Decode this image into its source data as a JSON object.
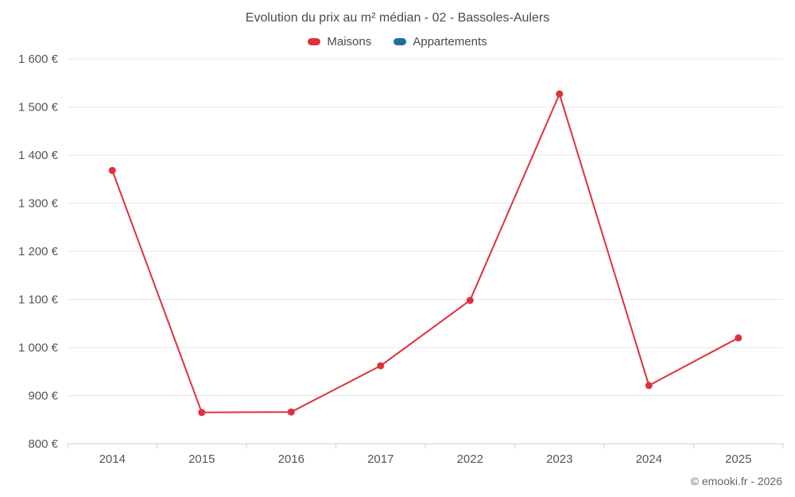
{
  "chart_data": {
    "type": "line",
    "title": "Evolution du prix au m² médian - 02 - Bassoles-Aulers",
    "categories": [
      "2014",
      "2015",
      "2016",
      "2017",
      "2022",
      "2023",
      "2024",
      "2025"
    ],
    "series": [
      {
        "name": "Maisons",
        "color": "#e0313a",
        "values": [
          1368,
          865,
          866,
          962,
          1098,
          1527,
          921,
          1020
        ]
      },
      {
        "name": "Appartements",
        "color": "#1971a2",
        "values": []
      }
    ],
    "xlabel": "",
    "ylabel": "",
    "ylim": [
      800,
      1600
    ],
    "ytick_step": 100,
    "yticks": [
      {
        "value": 800,
        "label": "800 €"
      },
      {
        "value": 900,
        "label": "900 €"
      },
      {
        "value": 1000,
        "label": "1 000 €"
      },
      {
        "value": 1100,
        "label": "1 100 €"
      },
      {
        "value": 1200,
        "label": "1 200 €"
      },
      {
        "value": 1300,
        "label": "1 300 €"
      },
      {
        "value": 1400,
        "label": "1 400 €"
      },
      {
        "value": 1500,
        "label": "1 500 €"
      },
      {
        "value": 1600,
        "label": "1 600 €"
      }
    ],
    "grid": true,
    "legend_position": "top"
  },
  "colors": {
    "grid_line": "#e7e7e7",
    "axis_line": "#d0d0d0",
    "tick_label": "#555555"
  },
  "footer": {
    "copyright": "© emooki.fr - 2026"
  }
}
